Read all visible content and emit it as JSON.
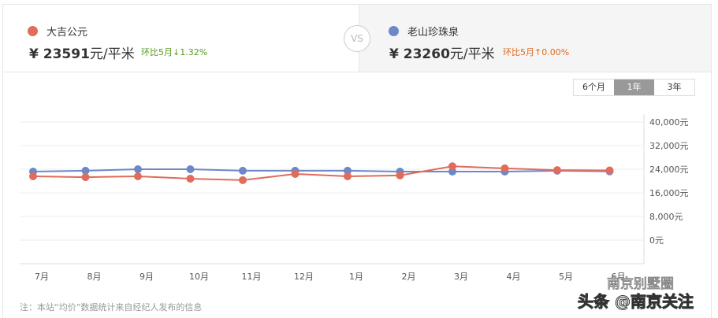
{
  "compare": {
    "left": {
      "name": "大吉公元",
      "currency": "¥",
      "price": "23591",
      "unit": "元/平米",
      "change": "环比5月↓1.32%",
      "color": "#e06c5a",
      "change_color": "#5a9a1e"
    },
    "vs": "VS",
    "right": {
      "name": "老山珍珠泉",
      "currency": "¥",
      "price": "23260",
      "unit": "元/平米",
      "change": "环比5月↑0.00%",
      "color": "#6e87c8",
      "change_color": "#e06a1e"
    }
  },
  "range_tabs": [
    {
      "label": "6个月",
      "active": false
    },
    {
      "label": "1年",
      "active": true
    },
    {
      "label": "3年",
      "active": false
    }
  ],
  "note": "注：本站“均价”数据统计来自经纪人发布的信息",
  "watermark": {
    "line1": "南京别墅圈",
    "line2": "头条 @南京关注"
  },
  "chart_data": {
    "type": "line",
    "categories": [
      "7月",
      "8月",
      "9月",
      "10月",
      "11月",
      "12月",
      "1月",
      "2月",
      "3月",
      "4月",
      "5月",
      "6月"
    ],
    "y_ticks": [
      "40,000元",
      "32,000元",
      "24,000元",
      "16,000元",
      "8,000元",
      "0元"
    ],
    "y_tick_values": [
      40000,
      32000,
      24000,
      16000,
      8000,
      0
    ],
    "ylim": [
      -8000,
      40000
    ],
    "y_axis_position": "right",
    "grid": true,
    "series": [
      {
        "name": "大吉公元",
        "color": "#e06c5a",
        "values": [
          21600,
          21300,
          21600,
          20800,
          20300,
          22400,
          21600,
          21900,
          25000,
          24300,
          23700,
          23591
        ]
      },
      {
        "name": "老山珍珠泉",
        "color": "#6e87c8",
        "values": [
          23200,
          23500,
          24000,
          24000,
          23500,
          23500,
          23500,
          23200,
          23200,
          23200,
          23500,
          23260
        ]
      }
    ]
  }
}
